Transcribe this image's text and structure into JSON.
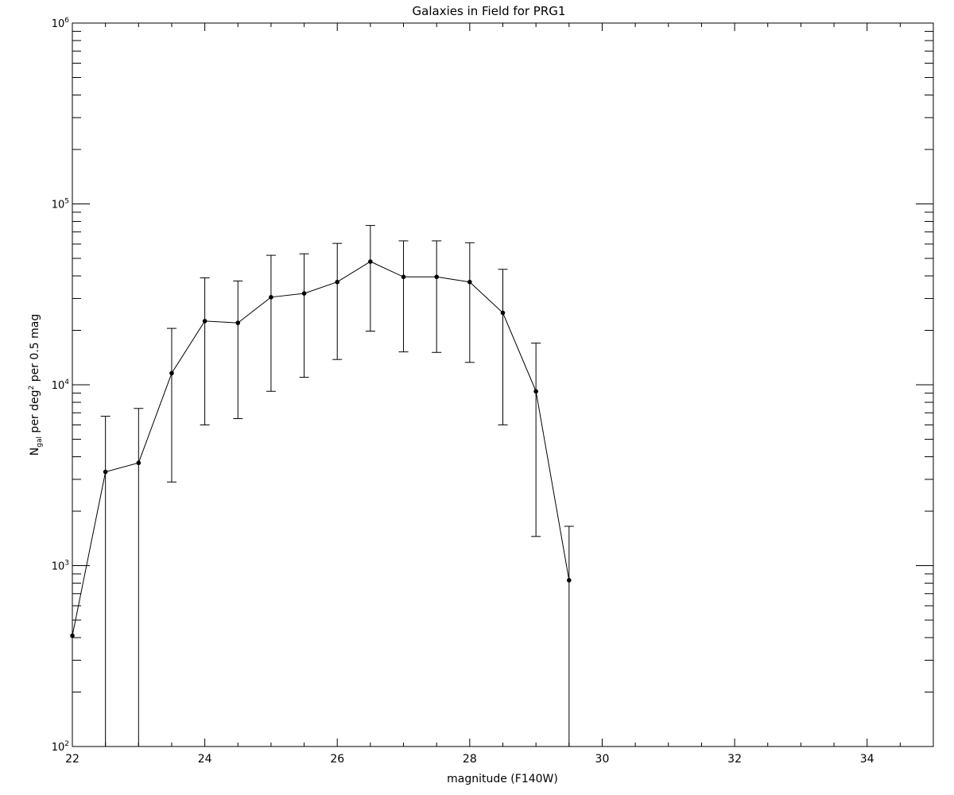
{
  "chart_data": {
    "type": "scatter",
    "title": "Galaxies in Field for PRG1",
    "xlabel": "magnitude (F140W)",
    "ylabel": {
      "main": "N",
      "sub": "gal",
      "mid": " per deg",
      "sup": "2",
      "end": " per 0.5 mag"
    },
    "xlim": [
      22,
      35
    ],
    "ylim": [
      100,
      1000000
    ],
    "yscale": "log",
    "x_ticks": [
      22,
      24,
      26,
      28,
      30,
      32,
      34
    ],
    "x_tick_labels": [
      "22",
      "24",
      "26",
      "28",
      "30",
      "32",
      "34"
    ],
    "y_ticks": [
      {
        "base": "10",
        "exp": "2",
        "value": 100
      },
      {
        "base": "10",
        "exp": "3",
        "value": 1000
      },
      {
        "base": "10",
        "exp": "4",
        "value": 10000
      },
      {
        "base": "10",
        "exp": "5",
        "value": 100000
      },
      {
        "base": "10",
        "exp": "6",
        "value": 1000000
      }
    ],
    "series": [
      {
        "x": [
          22.0,
          22.5,
          23.0,
          23.5,
          24.0,
          24.5,
          25.0,
          25.5,
          26.0,
          26.5,
          27.0,
          27.5,
          28.0,
          28.5,
          29.0,
          29.5
        ],
        "y": [
          410,
          3300,
          3700,
          11600,
          22500,
          22000,
          30500,
          32000,
          37000,
          48000,
          39500,
          39500,
          37000,
          25000,
          9200,
          830
        ],
        "yerr_low": [
          100,
          100,
          100,
          2900,
          6000,
          6500,
          9200,
          11000,
          13800,
          19800,
          15200,
          15100,
          13300,
          6000,
          1450,
          100
        ],
        "yerr_high": [
          null,
          6700,
          7400,
          20500,
          39000,
          37500,
          52000,
          53000,
          60500,
          76000,
          62500,
          62500,
          61000,
          43500,
          17000,
          1650
        ]
      }
    ]
  }
}
